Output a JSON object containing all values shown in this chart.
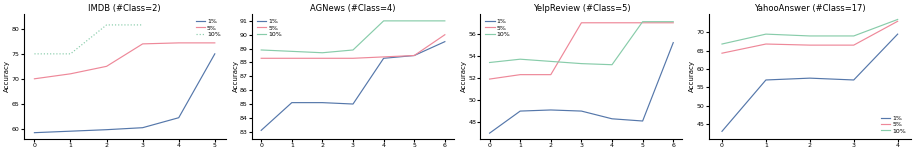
{
  "charts": [
    {
      "title": "IMDB (#Class=2)",
      "ylabel": "Accuracy",
      "xlim": [
        -0.3,
        5.3
      ],
      "ylim": [
        58,
        83
      ],
      "yticks": [
        60,
        65,
        70,
        75,
        80
      ],
      "xticks": [
        0,
        1,
        2,
        3,
        4,
        5
      ],
      "legend_loc": "upper right",
      "series": [
        {
          "label": "1%",
          "color": "#5577aa",
          "x": [
            0,
            1,
            2,
            3,
            4,
            5
          ],
          "y": [
            59.2,
            59.5,
            59.8,
            60.2,
            62.2,
            75.0
          ],
          "ls": "-"
        },
        {
          "label": "5%",
          "color": "#ee8899",
          "x": [
            0,
            1,
            2,
            3,
            4,
            5
          ],
          "y": [
            70.0,
            71.0,
            72.5,
            77.0,
            77.2,
            77.2
          ],
          "ls": "-"
        },
        {
          "label": "10%",
          "color": "#88ccaa",
          "x": [
            0,
            1,
            2,
            3
          ],
          "y": [
            75.0,
            75.0,
            80.8,
            80.8
          ],
          "ls": ":"
        }
      ]
    },
    {
      "title": "AGNews (#Class=4)",
      "ylabel": "Accuracy",
      "xlim": [
        -0.3,
        6.3
      ],
      "ylim": [
        82.5,
        91.5
      ],
      "yticks": [
        83,
        84,
        85,
        86,
        87,
        88,
        89,
        90,
        91
      ],
      "xticks": [
        0,
        1,
        2,
        3,
        4,
        5,
        6
      ],
      "legend_loc": "upper left",
      "series": [
        {
          "label": "1%",
          "color": "#5577aa",
          "x": [
            0,
            1,
            2,
            3,
            4,
            5,
            6
          ],
          "y": [
            83.1,
            85.1,
            85.1,
            85.0,
            88.3,
            88.5,
            89.5
          ],
          "ls": "-"
        },
        {
          "label": "5%",
          "color": "#ee8899",
          "x": [
            0,
            1,
            2,
            3,
            4,
            5,
            6
          ],
          "y": [
            88.3,
            88.3,
            88.3,
            88.3,
            88.4,
            88.5,
            90.0
          ],
          "ls": "-"
        },
        {
          "label": "10%",
          "color": "#88ccaa",
          "x": [
            0,
            1,
            2,
            3,
            4,
            5,
            6
          ],
          "y": [
            88.9,
            88.8,
            88.7,
            88.9,
            91.0,
            91.0,
            91.0
          ],
          "ls": "-"
        }
      ]
    },
    {
      "title": "YelpReview (#Class=5)",
      "ylabel": "Accuracy",
      "xlim": [
        -0.3,
        6.3
      ],
      "ylim": [
        46.5,
        57.8
      ],
      "yticks": [
        48,
        50,
        52,
        54,
        56
      ],
      "xticks": [
        0,
        1,
        2,
        3,
        4,
        5,
        6
      ],
      "legend_loc": "upper left",
      "series": [
        {
          "label": "1%",
          "color": "#5577aa",
          "x": [
            0,
            1,
            2,
            3,
            4,
            5,
            6
          ],
          "y": [
            47.0,
            49.0,
            49.1,
            49.0,
            48.3,
            48.1,
            55.2
          ],
          "ls": "-"
        },
        {
          "label": "5%",
          "color": "#ee8899",
          "x": [
            0,
            1,
            2,
            3,
            4,
            5,
            6
          ],
          "y": [
            51.9,
            52.3,
            52.3,
            57.0,
            57.0,
            57.0,
            57.0
          ],
          "ls": "-"
        },
        {
          "label": "10%",
          "color": "#88ccaa",
          "x": [
            0,
            1,
            2,
            3,
            4,
            5,
            6
          ],
          "y": [
            53.4,
            53.7,
            53.5,
            53.3,
            53.2,
            57.1,
            57.1
          ],
          "ls": "-"
        }
      ]
    },
    {
      "title": "YahooAnswer (#Class=17)",
      "ylabel": "Accuracy",
      "xlim": [
        -0.3,
        4.3
      ],
      "ylim": [
        41,
        75
      ],
      "yticks": [
        45,
        50,
        55,
        60,
        65,
        70
      ],
      "xticks": [
        0,
        1,
        2,
        3,
        4
      ],
      "legend_loc": "lower right",
      "series": [
        {
          "label": "1%",
          "color": "#5577aa",
          "x": [
            0,
            1,
            2,
            3,
            4
          ],
          "y": [
            43.0,
            57.0,
            57.5,
            57.0,
            69.5
          ],
          "ls": "-"
        },
        {
          "label": "5%",
          "color": "#ee8899",
          "x": [
            0,
            1,
            2,
            3,
            4
          ],
          "y": [
            64.3,
            66.8,
            66.5,
            66.5,
            73.0
          ],
          "ls": "-"
        },
        {
          "label": "10%",
          "color": "#88ccaa",
          "x": [
            0,
            1,
            2,
            3,
            4
          ],
          "y": [
            66.8,
            69.5,
            69.0,
            69.0,
            73.5
          ],
          "ls": "-"
        }
      ]
    }
  ]
}
